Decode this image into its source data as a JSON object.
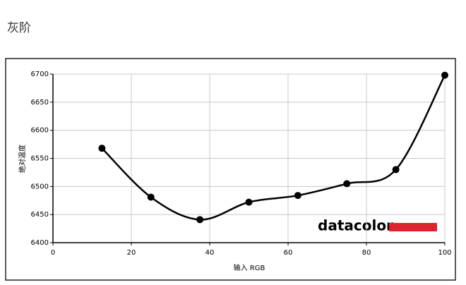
{
  "chart_data": {
    "type": "line",
    "title": "灰阶",
    "xlabel": "输入 RGB",
    "ylabel": "绝对温度",
    "watermark": "datacolor",
    "x": [
      12.5,
      25,
      37.5,
      50,
      62.5,
      75,
      87.5,
      100
    ],
    "series": [
      {
        "color": "#000000",
        "values": [
          6568,
          6481,
          6441,
          6472,
          6484,
          6505,
          6530,
          6698
        ]
      }
    ],
    "xlim": [
      0,
      100
    ],
    "xticks": [
      0,
      20,
      40,
      60,
      80,
      100
    ],
    "ylim": [
      6400,
      6700
    ],
    "yticks": [
      6400,
      6450,
      6500,
      6550,
      6600,
      6650,
      6700
    ],
    "grid": true
  }
}
